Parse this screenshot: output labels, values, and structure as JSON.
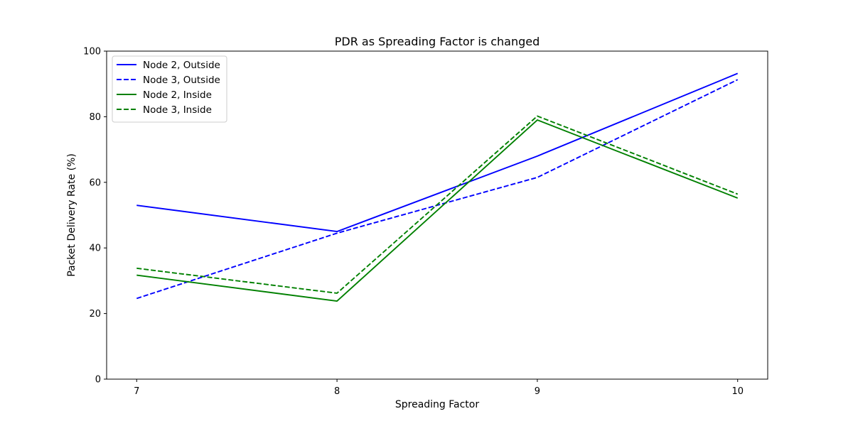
{
  "chart_data": {
    "type": "line",
    "title": "PDR as Spreading Factor is changed",
    "xlabel": "Spreading Factor",
    "ylabel": "Packet Delivery Rate (%)",
    "x": [
      7,
      8,
      9,
      10
    ],
    "xticks": [
      "7",
      "8",
      "9",
      "10"
    ],
    "xlim": [
      6.85,
      10.15
    ],
    "ylim": [
      0,
      100
    ],
    "yticks": [
      "0",
      "20",
      "40",
      "60",
      "80",
      "100"
    ],
    "grid": false,
    "legend_position": "upper-left",
    "series": [
      {
        "name": "Node 2, Outside",
        "values": [
          53.0,
          45.0,
          68.0,
          93.2
        ],
        "color": "#0000ff",
        "style": "solid"
      },
      {
        "name": "Node 3, Outside",
        "values": [
          24.6,
          44.5,
          61.5,
          91.3
        ],
        "color": "#0000ff",
        "style": "dashed"
      },
      {
        "name": "Node 2, Inside",
        "values": [
          31.7,
          23.8,
          79.0,
          55.2
        ],
        "color": "#008000",
        "style": "solid"
      },
      {
        "name": "Node 3, Inside",
        "values": [
          33.8,
          26.2,
          80.2,
          56.4
        ],
        "color": "#008000",
        "style": "dashed"
      }
    ]
  }
}
